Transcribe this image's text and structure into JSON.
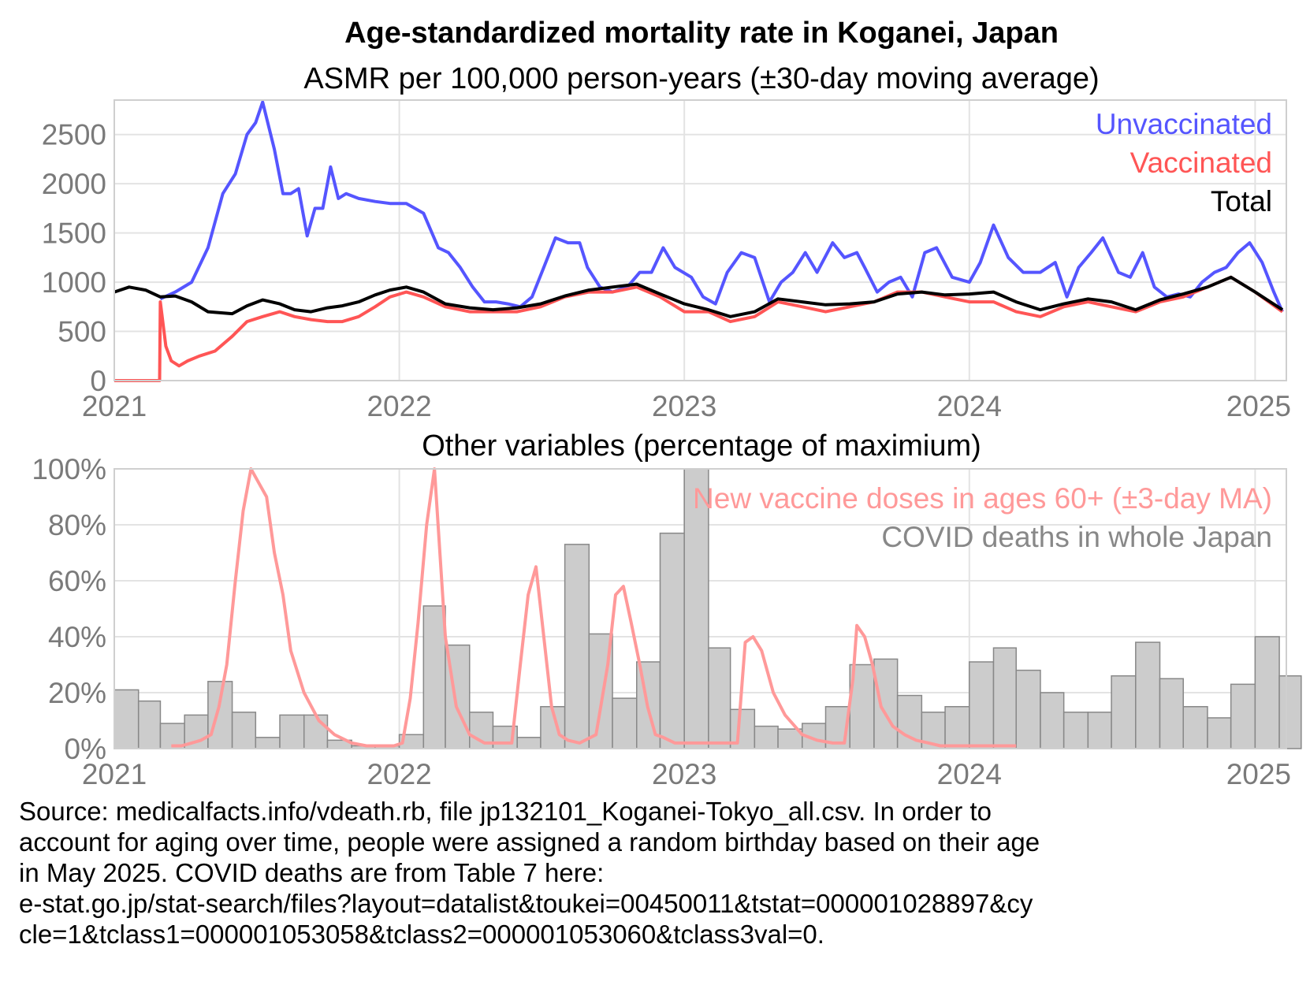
{
  "chart_data": [
    {
      "type": "line",
      "title": "Age-standardized mortality rate in Koganei, Japan",
      "subtitle": "ASMR per 100,000 person-years (±30-day moving average)",
      "xlim": [
        "2021-01-01",
        "2025-02-10"
      ],
      "x_ticks": [
        "2021",
        "2022",
        "2023",
        "2024",
        "2025"
      ],
      "ylim": [
        0,
        2850
      ],
      "y_ticks": [
        "0",
        "500",
        "1000",
        "1500",
        "2000",
        "2500"
      ],
      "grid": true,
      "legend_position": "top-right",
      "colors": {
        "Unvaccinated": "#5555ff",
        "Vaccinated": "#ff5555",
        "Total": "#000000"
      },
      "series": [
        {
          "name": "Unvaccinated",
          "x": [
            "2021-03-01",
            "2021-03-20",
            "2021-04-10",
            "2021-05-01",
            "2021-05-20",
            "2021-06-05",
            "2021-06-20",
            "2021-07-01",
            "2021-07-10",
            "2021-07-25",
            "2021-08-05",
            "2021-08-15",
            "2021-08-25",
            "2021-09-05",
            "2021-09-15",
            "2021-09-25",
            "2021-10-05",
            "2021-10-15",
            "2021-10-25",
            "2021-11-10",
            "2021-12-01",
            "2021-12-20",
            "2022-01-10",
            "2022-02-01",
            "2022-02-20",
            "2022-03-05",
            "2022-03-20",
            "2022-04-05",
            "2022-04-20",
            "2022-05-05",
            "2022-05-20",
            "2022-06-05",
            "2022-06-20",
            "2022-07-05",
            "2022-07-20",
            "2022-08-05",
            "2022-08-20",
            "2022-08-30",
            "2022-09-15",
            "2022-10-01",
            "2022-10-20",
            "2022-11-05",
            "2022-11-20",
            "2022-12-05",
            "2022-12-20",
            "2023-01-10",
            "2023-01-25",
            "2023-02-10",
            "2023-02-25",
            "2023-03-15",
            "2023-04-01",
            "2023-04-20",
            "2023-05-05",
            "2023-05-20",
            "2023-06-05",
            "2023-06-20",
            "2023-07-10",
            "2023-07-25",
            "2023-08-10",
            "2023-08-20",
            "2023-09-05",
            "2023-09-20",
            "2023-10-05",
            "2023-10-20",
            "2023-11-05",
            "2023-11-20",
            "2023-12-10",
            "2024-01-01",
            "2024-01-15",
            "2024-02-01",
            "2024-02-20",
            "2024-03-10",
            "2024-04-01",
            "2024-04-20",
            "2024-05-05",
            "2024-05-20",
            "2024-06-05",
            "2024-06-20",
            "2024-07-10",
            "2024-07-25",
            "2024-08-10",
            "2024-08-25",
            "2024-09-10",
            "2024-09-25",
            "2024-10-10",
            "2024-10-25",
            "2024-11-10",
            "2024-11-25",
            "2024-12-10",
            "2024-12-25",
            "2025-01-10",
            "2025-01-25",
            "2025-02-05"
          ],
          "values": [
            830,
            900,
            1000,
            1350,
            1900,
            2100,
            2500,
            2620,
            2830,
            2350,
            1900,
            1900,
            1950,
            1470,
            1750,
            1750,
            2170,
            1850,
            1900,
            1850,
            1820,
            1800,
            1800,
            1700,
            1350,
            1300,
            1150,
            950,
            800,
            800,
            780,
            750,
            850,
            1150,
            1450,
            1400,
            1400,
            1150,
            950,
            900,
            950,
            1100,
            1100,
            1350,
            1150,
            1050,
            850,
            780,
            1100,
            1300,
            1250,
            800,
            1000,
            1100,
            1300,
            1100,
            1400,
            1250,
            1300,
            1150,
            900,
            1000,
            1050,
            850,
            1300,
            1350,
            1050,
            1000,
            1200,
            1580,
            1250,
            1100,
            1100,
            1200,
            850,
            1150,
            1300,
            1450,
            1100,
            1050,
            1300,
            950,
            850,
            880,
            850,
            1000,
            1100,
            1150,
            1300,
            1400,
            1200,
            900,
            700
          ]
        },
        {
          "name": "Vaccinated",
          "x": [
            "2021-01-01",
            "2021-02-28",
            "2021-03-01",
            "2021-03-08",
            "2021-03-15",
            "2021-03-25",
            "2021-04-05",
            "2021-04-20",
            "2021-05-10",
            "2021-06-01",
            "2021-06-20",
            "2021-07-10",
            "2021-08-01",
            "2021-08-20",
            "2021-09-10",
            "2021-10-01",
            "2021-10-20",
            "2021-11-10",
            "2021-12-01",
            "2021-12-20",
            "2022-01-10",
            "2022-02-01",
            "2022-03-01",
            "2022-04-01",
            "2022-05-01",
            "2022-06-01",
            "2022-07-01",
            "2022-08-01",
            "2022-09-01",
            "2022-10-01",
            "2022-11-01",
            "2022-12-01",
            "2023-01-01",
            "2023-02-01",
            "2023-03-01",
            "2023-04-01",
            "2023-05-01",
            "2023-06-01",
            "2023-07-01",
            "2023-08-01",
            "2023-09-01",
            "2023-10-01",
            "2023-11-01",
            "2023-12-01",
            "2024-01-01",
            "2024-02-01",
            "2024-03-01",
            "2024-04-01",
            "2024-05-01",
            "2024-06-01",
            "2024-07-01",
            "2024-08-01",
            "2024-09-01",
            "2024-10-01",
            "2024-11-01",
            "2024-12-01",
            "2025-01-01",
            "2025-02-05"
          ],
          "values": [
            0,
            0,
            800,
            350,
            200,
            150,
            200,
            250,
            300,
            450,
            600,
            650,
            700,
            650,
            620,
            600,
            600,
            650,
            750,
            850,
            900,
            850,
            750,
            700,
            700,
            700,
            750,
            850,
            900,
            900,
            950,
            850,
            700,
            700,
            600,
            650,
            800,
            750,
            700,
            750,
            800,
            900,
            900,
            850,
            800,
            800,
            700,
            650,
            750,
            800,
            750,
            700,
            800,
            850,
            950,
            1050,
            900,
            700
          ]
        },
        {
          "name": "Total",
          "x": [
            "2021-01-01",
            "2021-01-20",
            "2021-02-10",
            "2021-03-01",
            "2021-03-20",
            "2021-04-10",
            "2021-05-01",
            "2021-06-01",
            "2021-06-20",
            "2021-07-10",
            "2021-08-01",
            "2021-08-20",
            "2021-09-10",
            "2021-10-01",
            "2021-10-20",
            "2021-11-10",
            "2021-12-01",
            "2021-12-20",
            "2022-01-10",
            "2022-02-01",
            "2022-03-01",
            "2022-04-01",
            "2022-05-01",
            "2022-06-01",
            "2022-07-01",
            "2022-08-01",
            "2022-09-01",
            "2022-10-01",
            "2022-11-01",
            "2022-12-01",
            "2023-01-01",
            "2023-02-01",
            "2023-03-01",
            "2023-04-01",
            "2023-05-01",
            "2023-06-01",
            "2023-07-01",
            "2023-08-01",
            "2023-09-01",
            "2023-10-01",
            "2023-11-01",
            "2023-12-01",
            "2024-01-01",
            "2024-02-01",
            "2024-03-01",
            "2024-04-01",
            "2024-05-01",
            "2024-06-01",
            "2024-07-01",
            "2024-08-01",
            "2024-09-01",
            "2024-10-01",
            "2024-11-01",
            "2024-12-01",
            "2025-01-01",
            "2025-02-05"
          ],
          "values": [
            900,
            950,
            920,
            850,
            860,
            800,
            700,
            680,
            760,
            820,
            780,
            720,
            700,
            740,
            760,
            800,
            870,
            920,
            950,
            900,
            780,
            740,
            720,
            740,
            780,
            860,
            920,
            950,
            980,
            880,
            780,
            720,
            650,
            700,
            830,
            800,
            770,
            780,
            800,
            880,
            900,
            870,
            880,
            900,
            800,
            720,
            780,
            830,
            800,
            720,
            820,
            880,
            950,
            1050,
            900,
            720
          ]
        }
      ]
    },
    {
      "type": "bar",
      "title": "Other variables (percentage of maximium)",
      "xlim": [
        "2021-01-01",
        "2025-02-10"
      ],
      "x_ticks": [
        "2021",
        "2022",
        "2023",
        "2024",
        "2025"
      ],
      "ylim": [
        0,
        100
      ],
      "y_ticks": [
        "0%",
        "20%",
        "40%",
        "60%",
        "80%",
        "100%"
      ],
      "grid": true,
      "legend_position": "top-right",
      "colors": {
        "bars": "#cccccc",
        "bar_border": "#888888",
        "vaccine_line": "#ff9999",
        "covid_label": "#888888"
      },
      "series": [
        {
          "name": "COVID deaths in whole Japan",
          "categories": [
            "2021-01",
            "2021-02",
            "2021-03",
            "2021-04",
            "2021-05",
            "2021-06",
            "2021-07",
            "2021-08",
            "2021-09",
            "2021-10",
            "2021-11",
            "2021-12",
            "2022-01",
            "2022-02",
            "2022-03",
            "2022-04",
            "2022-05",
            "2022-06",
            "2022-07",
            "2022-08",
            "2022-09",
            "2022-10",
            "2022-11",
            "2022-12",
            "2023-01",
            "2023-02",
            "2023-03",
            "2023-04",
            "2023-05",
            "2023-06",
            "2023-07",
            "2023-08",
            "2023-09",
            "2023-10",
            "2023-11",
            "2023-12",
            "2024-01",
            "2024-02",
            "2024-03",
            "2024-04",
            "2024-05",
            "2024-06",
            "2024-07",
            "2024-08",
            "2024-09",
            "2024-10",
            "2024-11",
            "2024-12",
            "2025-01",
            "2025-02"
          ],
          "values": [
            21,
            17,
            9,
            12,
            24,
            13,
            4,
            12,
            12,
            3,
            1,
            1,
            5,
            51,
            37,
            13,
            8,
            4,
            15,
            73,
            41,
            18,
            31,
            77,
            100,
            36,
            14,
            8,
            7,
            9,
            15,
            30,
            32,
            19,
            13,
            15,
            31,
            36,
            28,
            20,
            13,
            13,
            26,
            38,
            25,
            15,
            11,
            23,
            40,
            26
          ]
        },
        {
          "name": "New vaccine doses in ages 60+ (±3-day MA)",
          "x": [
            "2021-03-15",
            "2021-03-28",
            "2021-04-10",
            "2021-04-22",
            "2021-05-05",
            "2021-05-15",
            "2021-05-25",
            "2021-06-05",
            "2021-06-15",
            "2021-06-25",
            "2021-07-05",
            "2021-07-15",
            "2021-07-25",
            "2021-08-05",
            "2021-08-15",
            "2021-09-01",
            "2021-09-20",
            "2021-10-10",
            "2021-11-01",
            "2021-11-20",
            "2021-12-01",
            "2021-12-10",
            "2021-12-25",
            "2022-01-05",
            "2022-01-15",
            "2022-01-25",
            "2022-02-05",
            "2022-02-15",
            "2022-03-01",
            "2022-03-15",
            "2022-04-01",
            "2022-04-20",
            "2022-05-10",
            "2022-05-25",
            "2022-06-05",
            "2022-06-15",
            "2022-06-25",
            "2022-07-05",
            "2022-07-15",
            "2022-07-25",
            "2022-08-05",
            "2022-08-20",
            "2022-09-10",
            "2022-09-25",
            "2022-10-05",
            "2022-10-15",
            "2022-10-25",
            "2022-11-05",
            "2022-11-15",
            "2022-11-25",
            "2022-12-05",
            "2022-12-20",
            "2023-01-15",
            "2023-02-15",
            "2023-03-10",
            "2023-03-20",
            "2023-03-30",
            "2023-04-10",
            "2023-04-25",
            "2023-05-10",
            "2023-06-01",
            "2023-06-20",
            "2023-07-10",
            "2023-07-25",
            "2023-08-05",
            "2023-08-10",
            "2023-08-20",
            "2023-08-30",
            "2023-09-10",
            "2023-09-25",
            "2023-10-10",
            "2023-10-25",
            "2023-11-10",
            "2023-11-25",
            "2023-12-10",
            "2024-01-01",
            "2024-01-20",
            "2024-02-10",
            "2024-03-01"
          ],
          "values": [
            1,
            1,
            2,
            3,
            5,
            15,
            30,
            60,
            85,
            100,
            95,
            90,
            70,
            55,
            35,
            20,
            10,
            5,
            2,
            1,
            1,
            1,
            1,
            2,
            18,
            45,
            80,
            100,
            40,
            15,
            5,
            2,
            2,
            2,
            30,
            55,
            65,
            40,
            15,
            5,
            3,
            2,
            5,
            30,
            55,
            58,
            45,
            30,
            15,
            5,
            4,
            2,
            2,
            2,
            2,
            38,
            40,
            35,
            20,
            12,
            5,
            3,
            2,
            2,
            25,
            44,
            40,
            30,
            15,
            8,
            5,
            3,
            2,
            1,
            1,
            1,
            1,
            1,
            1
          ]
        }
      ]
    }
  ],
  "footer": {
    "source": "Source: medicalfacts.info/vdeath.rb, file jp132101_Koganei-Tokyo_all.csv. In order to\naccount for aging over time, people were assigned a random birthday based on their age\nin May 2025. COVID deaths are from Table 7 here:\ne-stat.go.jp/stat-search/files?layout=datalist&toukei=00450011&tstat=000001028897&cy\ncle=1&tclass1=000001053058&tclass2=000001053060&tclass3val=0."
  }
}
